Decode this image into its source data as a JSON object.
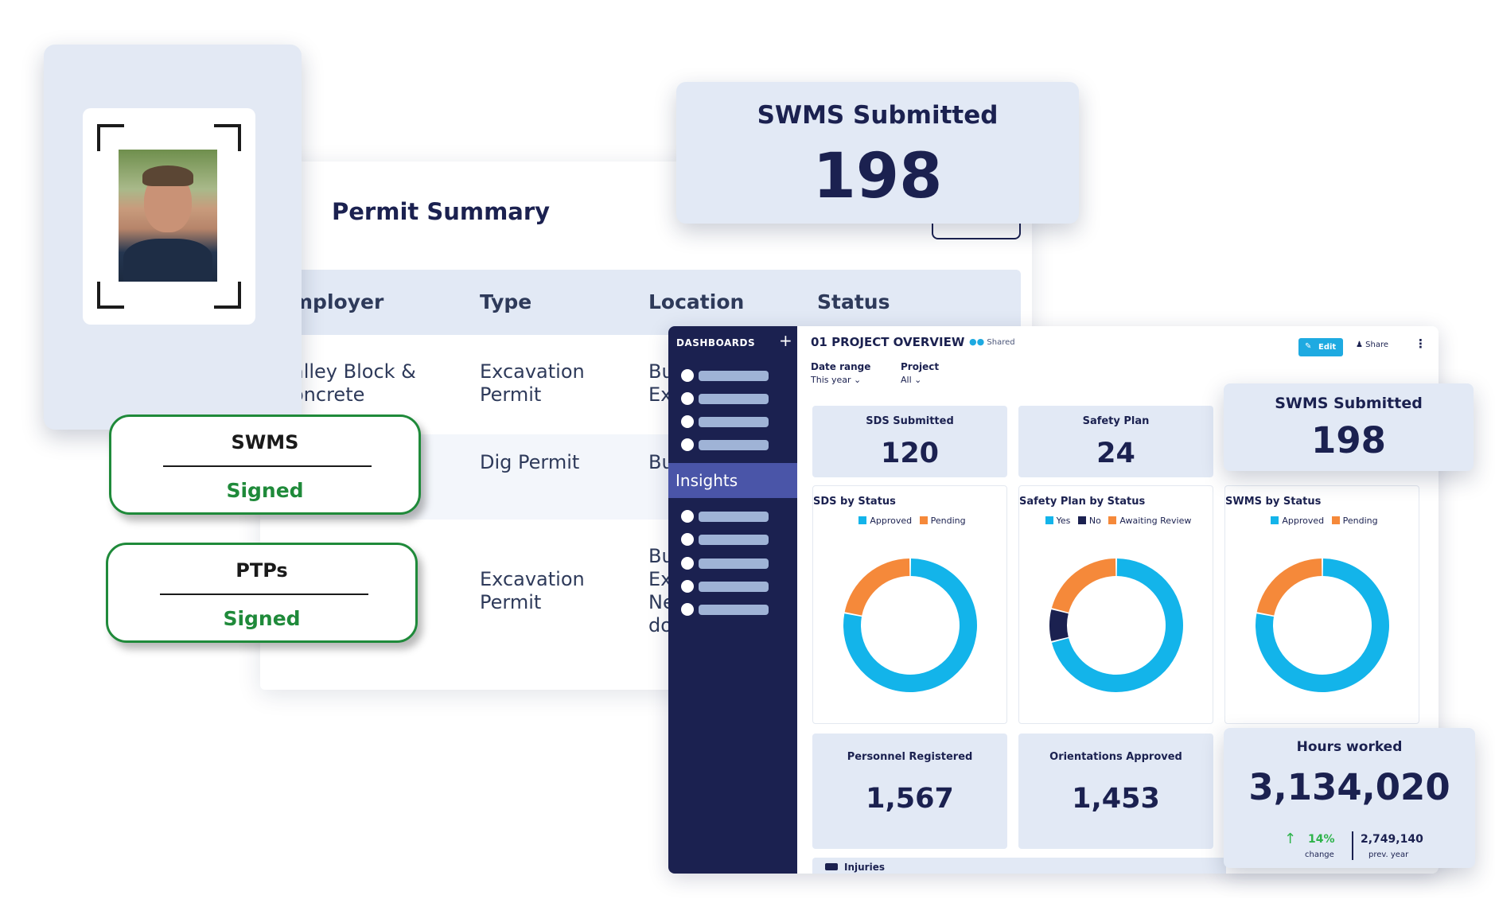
{
  "permit": {
    "title": "Permit Summary",
    "columns": [
      "mployer",
      "Type",
      "Location",
      "Status"
    ],
    "rows": [
      {
        "employer": [
          "alley Block &",
          "oncrete"
        ],
        "type": [
          "Excavation",
          "Permit"
        ],
        "location": [
          "Bu",
          "Ex"
        ]
      },
      {
        "employer": [],
        "type": [
          "Dig Permit"
        ],
        "location": [
          "Bu"
        ]
      },
      {
        "employer": [],
        "type": [
          "Excavation",
          "Permit"
        ],
        "location": [
          "Bu",
          "Ex",
          "Ne",
          "do"
        ]
      }
    ]
  },
  "badges": [
    {
      "title": "SWMS",
      "status": "Signed"
    },
    {
      "title": "PTPs",
      "status": "Signed"
    }
  ],
  "swms_card": {
    "title": "SWMS Submitted",
    "value": "198"
  },
  "dashboard": {
    "sidebar": {
      "title": "DASHBOARDS",
      "plus": "+",
      "active_item": "Insights"
    },
    "title": "01 PROJECT OVERVIEW",
    "shared": "Shared",
    "edit": "Edit",
    "share": "Share",
    "kebab": "⋮",
    "filters": [
      {
        "label": "Date range",
        "value": "This year"
      },
      {
        "label": "Project",
        "value": "All"
      }
    ],
    "tiles": [
      {
        "title": "SDS Submitted",
        "value": "120"
      },
      {
        "title": "Safety Plan",
        "value": "24"
      }
    ],
    "overlay_stat": {
      "title": "SWMS Submitted",
      "value": "198"
    },
    "bottom_tiles": [
      {
        "title": "Personnel Registered",
        "value": "1,567"
      },
      {
        "title": "Orientations Approved",
        "value": "1,453"
      }
    ],
    "hours": {
      "title": "Hours worked",
      "value": "3,134,020",
      "change": "14%",
      "change_label": "change",
      "prev": "2,749,140",
      "prev_label": "prev. year"
    },
    "injuries": "Injuries"
  },
  "chart_data": [
    {
      "type": "pie",
      "title": "SDS by Status",
      "categories": [
        "Approved",
        "Pending"
      ],
      "values": [
        78,
        22
      ],
      "colors": [
        "#13b4ea",
        "#f5893a"
      ]
    },
    {
      "type": "pie",
      "title": "Safety Plan by Status",
      "categories": [
        "Yes",
        "No",
        "Awaiting Review"
      ],
      "values": [
        71,
        8,
        21
      ],
      "colors": [
        "#13b4ea",
        "#1b2150",
        "#f5893a"
      ]
    },
    {
      "type": "pie",
      "title": "SWMS by Status",
      "categories": [
        "Approved",
        "Pending"
      ],
      "values": [
        78,
        22
      ],
      "colors": [
        "#13b4ea",
        "#f5893a"
      ]
    }
  ]
}
